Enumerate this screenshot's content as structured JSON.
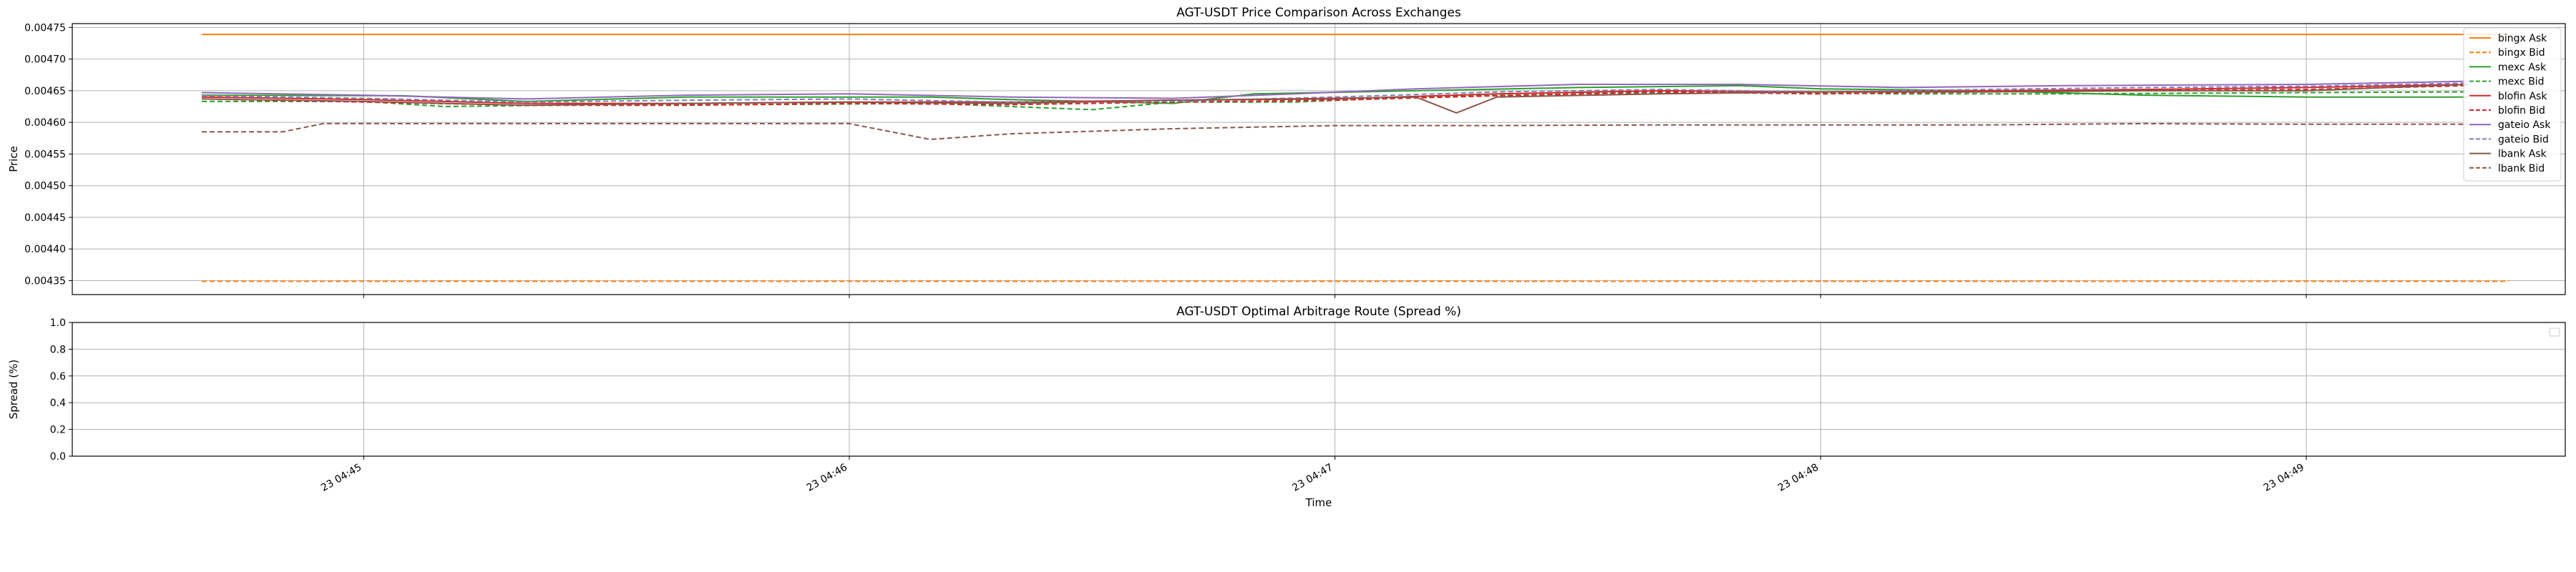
{
  "chart_data": [
    {
      "type": "line",
      "title": "AGT-USDT Price Comparison Across Exchanges",
      "xlabel": "",
      "ylabel": "Price",
      "ylim": [
        0.004328,
        0.004756
      ],
      "xlim": [
        "23 04:44:24",
        "23 04:49:32"
      ],
      "yticks": [
        "0.00435",
        "0.00440",
        "0.00445",
        "0.00450",
        "0.00455",
        "0.00460",
        "0.00465",
        "0.00470",
        "0.00475"
      ],
      "ytick_values": [
        0.00435,
        0.0044,
        0.00445,
        0.0045,
        0.00455,
        0.0046,
        0.00465,
        0.0047,
        0.00475
      ],
      "grid": true,
      "legend_position": "top-right",
      "series": [
        {
          "name": "bingx Ask",
          "color": "#ff7f0e",
          "dash": "solid",
          "x": [
            "23 04:44:40",
            "23 04:49:25"
          ],
          "y": [
            0.004739,
            0.004739
          ]
        },
        {
          "name": "bingx Bid",
          "color": "#ff7f0e",
          "dash": "dashed",
          "x": [
            "23 04:44:40",
            "23 04:49:25"
          ],
          "y": [
            0.004349,
            0.004349
          ]
        },
        {
          "name": "mexc Ask",
          "color": "#2ca02c",
          "dash": "solid",
          "x": [
            "23 04:44:40",
            "23 04:45:05",
            "23 04:45:20",
            "23 04:45:40",
            "23 04:46:10",
            "23 04:46:20",
            "23 04:46:40",
            "23 04:46:50",
            "23 04:47:10",
            "23 04:47:30",
            "23 04:47:50",
            "23 04:48:00",
            "23 04:48:20",
            "23 04:48:40",
            "23 04:49:00",
            "23 04:49:20"
          ],
          "y": [
            0.004643,
            0.004642,
            0.004633,
            0.00464,
            0.00464,
            0.004636,
            0.00463,
            0.004645,
            0.00465,
            0.004655,
            0.004658,
            0.004653,
            0.00465,
            0.004643,
            0.00464,
            0.00464
          ]
        },
        {
          "name": "mexc Bid",
          "color": "#2ca02c",
          "dash": "dashed",
          "x": [
            "23 04:44:40",
            "23 04:45:00",
            "23 04:45:10",
            "23 04:45:30",
            "23 04:45:50",
            "23 04:46:10",
            "23 04:46:20",
            "23 04:46:30",
            "23 04:46:40",
            "23 04:46:55",
            "23 04:47:10",
            "23 04:47:30",
            "23 04:47:50",
            "23 04:48:10",
            "23 04:48:30",
            "23 04:49:00",
            "23 04:49:20"
          ],
          "y": [
            0.004633,
            0.004633,
            0.004625,
            0.004628,
            0.004628,
            0.00463,
            0.004625,
            0.00462,
            0.004632,
            0.004632,
            0.00464,
            0.004645,
            0.004648,
            0.004645,
            0.004645,
            0.004647,
            0.004648
          ]
        },
        {
          "name": "blofin Ask",
          "color": "#d62728",
          "dash": "solid",
          "x": [
            "23 04:44:40",
            "23 04:45:00",
            "23 04:45:20",
            "23 04:45:40",
            "23 04:46:00",
            "23 04:46:20",
            "23 04:46:40",
            "23 04:47:00",
            "23 04:47:20",
            "23 04:47:40",
            "23 04:48:00",
            "23 04:48:20",
            "23 04:48:40",
            "23 04:49:00",
            "23 04:49:20"
          ],
          "y": [
            0.00464,
            0.004636,
            0.00463,
            0.00463,
            0.004632,
            0.004632,
            0.004635,
            0.004637,
            0.004645,
            0.00465,
            0.004648,
            0.00465,
            0.004652,
            0.004655,
            0.00466
          ]
        },
        {
          "name": "blofin Bid",
          "color": "#d62728",
          "dash": "dashed",
          "x": [
            "23 04:44:40",
            "23 04:45:00",
            "23 04:45:20",
            "23 04:45:40",
            "23 04:46:00",
            "23 04:46:20",
            "23 04:46:40",
            "23 04:47:00",
            "23 04:47:20",
            "23 04:47:40",
            "23 04:48:00",
            "23 04:48:20",
            "23 04:48:40",
            "23 04:49:00",
            "23 04:49:20"
          ],
          "y": [
            0.004637,
            0.004632,
            0.004627,
            0.004627,
            0.00463,
            0.004628,
            0.004632,
            0.004635,
            0.004642,
            0.004648,
            0.004645,
            0.004648,
            0.00465,
            0.004652,
            0.004658
          ]
        },
        {
          "name": "gateio Ask",
          "color": "#9467bd",
          "dash": "solid",
          "x": [
            "23 04:44:40",
            "23 04:45:00",
            "23 04:45:20",
            "23 04:45:40",
            "23 04:46:00",
            "23 04:46:20",
            "23 04:46:40",
            "23 04:46:55",
            "23 04:47:10",
            "23 04:47:30",
            "23 04:47:50",
            "23 04:48:10",
            "23 04:48:30",
            "23 04:49:00",
            "23 04:49:20"
          ],
          "y": [
            0.004647,
            0.004643,
            0.004637,
            0.004643,
            0.004645,
            0.00464,
            0.004638,
            0.004645,
            0.004653,
            0.00466,
            0.00466,
            0.004655,
            0.004658,
            0.00466,
            0.004665
          ]
        },
        {
          "name": "gateio Bid",
          "color": "#7f7fbf",
          "dash": "dashed",
          "x": [
            "23 04:44:40",
            "23 04:45:00",
            "23 04:45:20",
            "23 04:45:40",
            "23 04:46:00",
            "23 04:46:20",
            "23 04:46:40",
            "23 04:47:00",
            "23 04:47:20",
            "23 04:47:40",
            "23 04:48:00",
            "23 04:48:20",
            "23 04:48:40",
            "23 04:49:00",
            "23 04:49:20"
          ],
          "y": [
            0.004642,
            0.004638,
            0.004632,
            0.004635,
            0.004637,
            0.004632,
            0.004633,
            0.00464,
            0.004648,
            0.004652,
            0.004648,
            0.004652,
            0.004655,
            0.004657,
            0.004662
          ]
        },
        {
          "name": "lbank Ask",
          "color": "#8c564b",
          "dash": "solid",
          "x": [
            "23 04:44:40",
            "23 04:45:00",
            "23 04:45:20",
            "23 04:45:40",
            "23 04:46:00",
            "23 04:46:20",
            "23 04:46:40",
            "23 04:47:00",
            "23 04:47:10",
            "23 04:47:15",
            "23 04:47:20",
            "23 04:47:40",
            "23 04:48:00",
            "23 04:48:20",
            "23 04:48:40",
            "23 04:49:00",
            "23 04:49:20"
          ],
          "y": [
            0.004637,
            0.004633,
            0.004627,
            0.00463,
            0.004632,
            0.00463,
            0.004635,
            0.004638,
            0.00464,
            0.004615,
            0.00464,
            0.004645,
            0.004648,
            0.004648,
            0.00465,
            0.00465,
            0.00466
          ]
        },
        {
          "name": "lbank Bid",
          "color": "#8c564b",
          "dash": "dashed",
          "x": [
            "23 04:44:40",
            "23 04:44:50",
            "23 04:44:55",
            "23 04:45:20",
            "23 04:45:40",
            "23 04:46:00",
            "23 04:46:10",
            "23 04:46:20",
            "23 04:46:40",
            "23 04:47:00",
            "23 04:47:20",
            "23 04:47:40",
            "23 04:48:00",
            "23 04:48:20",
            "23 04:48:40",
            "23 04:49:00",
            "23 04:49:20"
          ],
          "y": [
            0.004585,
            0.004585,
            0.004598,
            0.004598,
            0.004598,
            0.004598,
            0.004573,
            0.004582,
            0.00459,
            0.004595,
            0.004595,
            0.004596,
            0.004596,
            0.004596,
            0.004598,
            0.004597,
            0.004597
          ]
        }
      ]
    },
    {
      "type": "line",
      "title": "AGT-USDT Optimal Arbitrage Route (Spread %)",
      "xlabel": "Time",
      "ylabel": "Spread (%)",
      "ylim": [
        0.0,
        1.0
      ],
      "yticks": [
        "0.0",
        "0.2",
        "0.4",
        "0.6",
        "0.8",
        "1.0"
      ],
      "ytick_values": [
        0.0,
        0.2,
        0.4,
        0.6,
        0.8,
        1.0
      ],
      "xticks": [
        "23 04:45",
        "23 04:46",
        "23 04:47",
        "23 04:48",
        "23 04:49"
      ],
      "grid": true,
      "series": []
    }
  ]
}
